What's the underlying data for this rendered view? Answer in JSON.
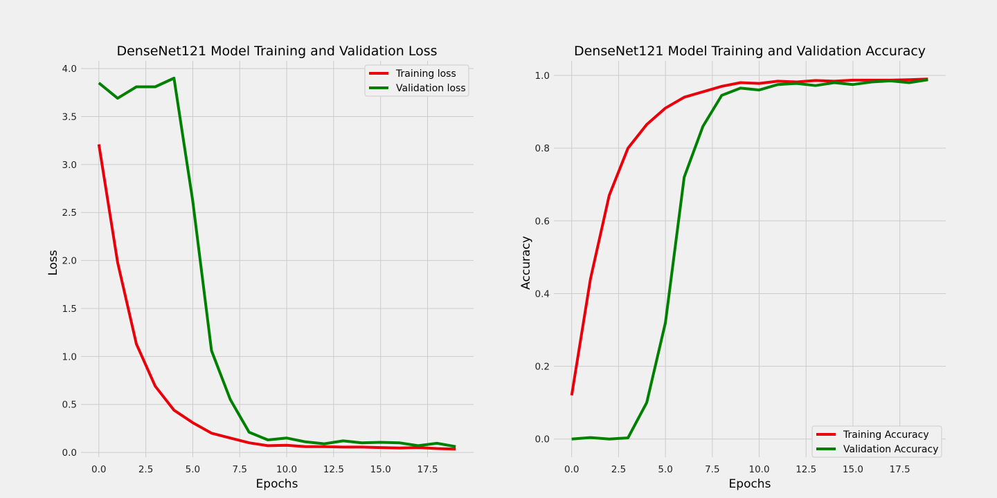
{
  "figure": {
    "background": "#f0f0f0"
  },
  "chart_data": [
    {
      "type": "line",
      "title": "DenseNet121 Model Training and Validation Loss",
      "xlabel": "Epochs",
      "ylabel": "Loss",
      "x": [
        0,
        1,
        2,
        3,
        4,
        5,
        6,
        7,
        8,
        9,
        10,
        11,
        12,
        13,
        14,
        15,
        16,
        17,
        18,
        19
      ],
      "xlim": [
        -0.95,
        19.95
      ],
      "ylim": [
        -0.05,
        4.08
      ],
      "xticks": [
        0.0,
        2.5,
        5.0,
        7.5,
        10.0,
        12.5,
        15.0,
        17.5
      ],
      "xtick_labels": [
        "0.0",
        "2.5",
        "5.0",
        "7.5",
        "10.0",
        "12.5",
        "15.0",
        "17.5"
      ],
      "yticks": [
        0.0,
        0.5,
        1.0,
        1.5,
        2.0,
        2.5,
        3.0,
        3.5,
        4.0
      ],
      "ytick_labels": [
        "0.0",
        "0.5",
        "1.0",
        "1.5",
        "2.0",
        "2.5",
        "3.0",
        "3.5",
        "4.0"
      ],
      "grid": true,
      "legend_position": "top-right",
      "series": [
        {
          "name": "Training loss",
          "color": "#e8000b",
          "values": [
            3.21,
            1.98,
            1.13,
            0.69,
            0.44,
            0.31,
            0.2,
            0.15,
            0.1,
            0.07,
            0.075,
            0.06,
            0.06,
            0.055,
            0.055,
            0.05,
            0.045,
            0.05,
            0.04,
            0.035
          ]
        },
        {
          "name": "Validation loss",
          "color": "#008000",
          "values": [
            3.85,
            3.69,
            3.81,
            3.81,
            3.9,
            2.62,
            1.06,
            0.55,
            0.21,
            0.13,
            0.15,
            0.11,
            0.09,
            0.12,
            0.1,
            0.105,
            0.1,
            0.07,
            0.095,
            0.06
          ]
        }
      ]
    },
    {
      "type": "line",
      "title": "DenseNet121 Model Training and Validation Accuracy",
      "xlabel": "Epochs",
      "ylabel": "Accuracy",
      "x": [
        0,
        1,
        2,
        3,
        4,
        5,
        6,
        7,
        8,
        9,
        10,
        11,
        12,
        13,
        14,
        15,
        16,
        17,
        18,
        19
      ],
      "xlim": [
        -0.95,
        19.95
      ],
      "ylim": [
        -0.05,
        1.04
      ],
      "xticks": [
        0.0,
        2.5,
        5.0,
        7.5,
        10.0,
        12.5,
        15.0,
        17.5
      ],
      "xtick_labels": [
        "0.0",
        "2.5",
        "5.0",
        "7.5",
        "10.0",
        "12.5",
        "15.0",
        "17.5"
      ],
      "yticks": [
        0.0,
        0.2,
        0.4,
        0.6,
        0.8,
        1.0
      ],
      "ytick_labels": [
        "0.0",
        "0.2",
        "0.4",
        "0.6",
        "0.8",
        "1.0"
      ],
      "grid": true,
      "legend_position": "bottom-right",
      "series": [
        {
          "name": "Training Accuracy",
          "color": "#e8000b",
          "values": [
            0.12,
            0.44,
            0.67,
            0.8,
            0.865,
            0.91,
            0.94,
            0.955,
            0.97,
            0.98,
            0.978,
            0.984,
            0.982,
            0.986,
            0.984,
            0.987,
            0.987,
            0.987,
            0.988,
            0.99
          ]
        },
        {
          "name": "Validation Accuracy",
          "color": "#008000",
          "values": [
            0.0,
            0.004,
            0.0,
            0.003,
            0.1,
            0.32,
            0.72,
            0.86,
            0.945,
            0.965,
            0.96,
            0.975,
            0.978,
            0.972,
            0.98,
            0.975,
            0.982,
            0.985,
            0.98,
            0.988
          ]
        }
      ]
    }
  ]
}
